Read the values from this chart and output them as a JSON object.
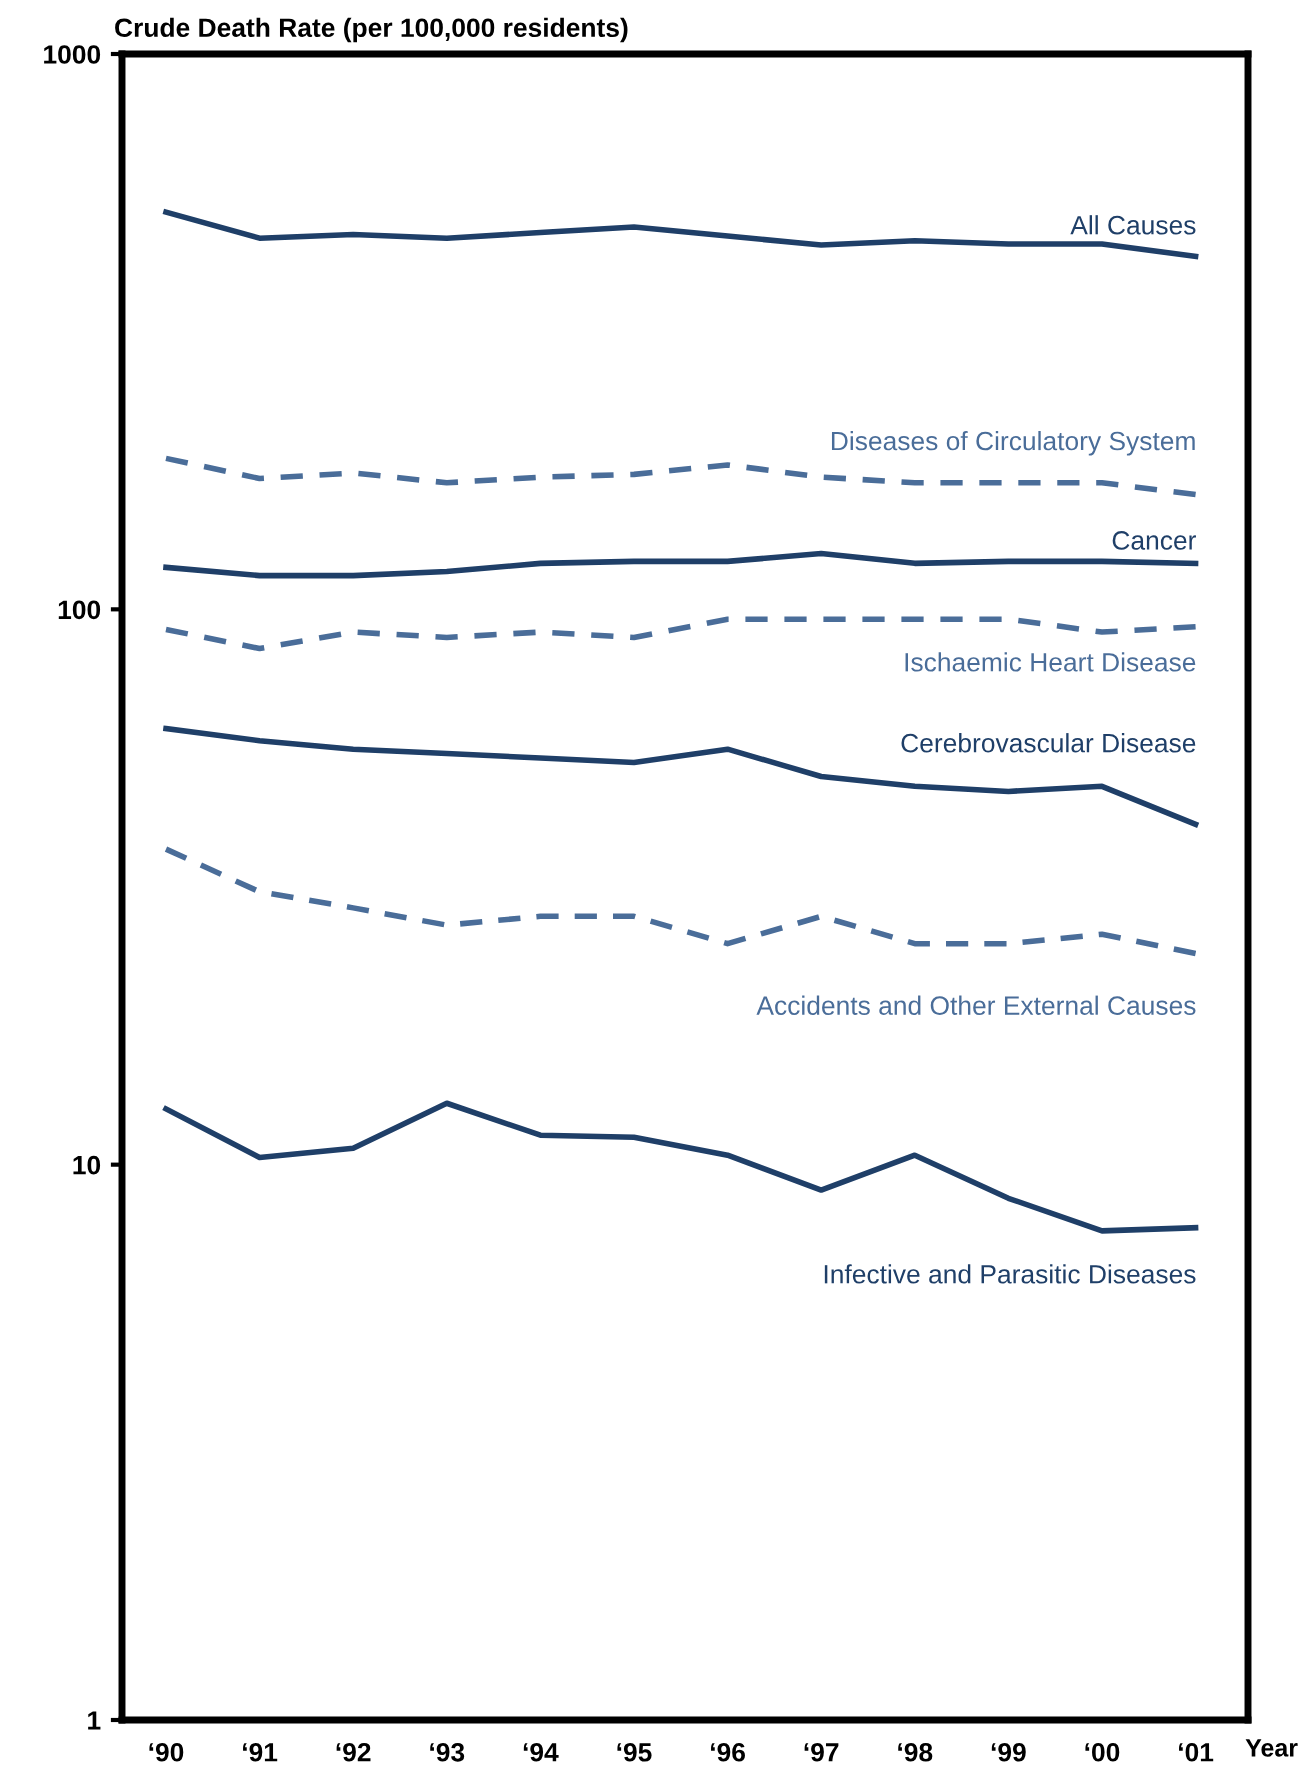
{
  "chart_data": {
    "type": "line",
    "title": "Crude Death Rate (per 100,000 residents)",
    "xlabel": "Year",
    "log": "y",
    "ylim": [
      1,
      1000
    ],
    "yticks": [
      1,
      10,
      100,
      1000
    ],
    "grid": false,
    "legend": false,
    "marker": "none",
    "categories": [
      "‘90",
      "‘91",
      "‘92",
      "‘93",
      "‘94",
      "‘95",
      "‘96",
      "‘97",
      "‘98",
      "‘99",
      "‘00",
      "‘01"
    ],
    "series": [
      {
        "name": "All Causes",
        "color": "#1f3f68",
        "line_style": "solid",
        "values": [
          519,
          466,
          473,
          466,
          477,
          488,
          470,
          453,
          461,
          455,
          455,
          432
        ]
      },
      {
        "name": "Diseases of Circulatory System",
        "color": "#4a6d99",
        "line_style": "dashed",
        "values": [
          187,
          172,
          176,
          169,
          173,
          175,
          182,
          173,
          169,
          169,
          169,
          161
        ]
      },
      {
        "name": "Cancer",
        "color": "#1f3f68",
        "line_style": "solid",
        "values": [
          119,
          115,
          115,
          117,
          121,
          122,
          122,
          126,
          121,
          122,
          122,
          121
        ]
      },
      {
        "name": "Ischaemic Heart Disease",
        "color": "#4a6d99",
        "line_style": "dashed",
        "values": [
          92,
          85,
          91,
          89,
          91,
          89,
          96,
          96,
          96,
          96,
          91,
          93
        ]
      },
      {
        "name": "Cerebrovascular Disease",
        "color": "#1f3f68",
        "line_style": "solid",
        "values": [
          61,
          58,
          56,
          55,
          54,
          53,
          56,
          50,
          48,
          47,
          48,
          41
        ]
      },
      {
        "name": "Accidents and Other External Causes",
        "color": "#4a6d99",
        "line_style": "dashed",
        "values": [
          37,
          31,
          29,
          27,
          28,
          28,
          25,
          28,
          25,
          25,
          26,
          24
        ]
      },
      {
        "name": "Infective and Parasitic Diseases",
        "color": "#1f3f68",
        "line_style": "solid",
        "values": [
          12.6,
          10.3,
          10.7,
          12.9,
          11.3,
          11.2,
          10.4,
          9.0,
          10.4,
          8.7,
          7.6,
          7.7
        ]
      }
    ]
  }
}
